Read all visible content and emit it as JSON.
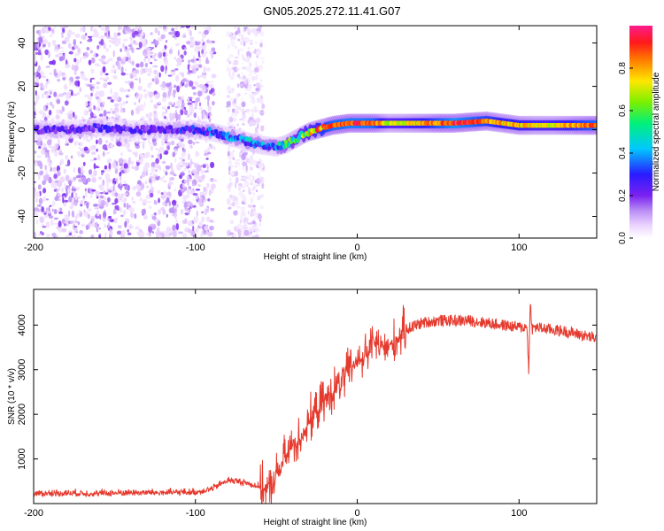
{
  "title": "GN05.2025.272.11.41.G07",
  "colors": {
    "snr_line": "#e53a2e",
    "colormap": [
      "#ffffff",
      "#ebd3ff",
      "#b98cf5",
      "#7a22f0",
      "#2a1bff",
      "#00c8ff",
      "#00f07a",
      "#7cf000",
      "#ffe600",
      "#ff7a00",
      "#ff1a1a",
      "#ff1a8c"
    ]
  },
  "chart_data": [
    {
      "type": "heatmap",
      "title": "",
      "xlabel": "Height of straight line (km)",
      "ylabel": "Frequency (Hz)",
      "xlim": [
        -200,
        148
      ],
      "ylim": [
        -50,
        48
      ],
      "xticks": [
        -200,
        -100,
        0,
        100
      ],
      "yticks": [
        -40,
        -20,
        0,
        20,
        40
      ],
      "colorbar": {
        "label": "Normalized spectral amplitude",
        "range": [
          0,
          1
        ],
        "ticks": [
          "0.0",
          "0.2",
          "0.4",
          "0.6",
          "0.8"
        ]
      },
      "ridge": {
        "x": [
          -200,
          -180,
          -160,
          -140,
          -120,
          -100,
          -90,
          -80,
          -70,
          -60,
          -50,
          -45,
          -40,
          -35,
          -30,
          -25,
          -20,
          -15,
          -10,
          -5,
          0,
          10,
          20,
          40,
          60,
          80,
          90,
          100,
          110,
          120,
          148
        ],
        "freq": [
          0,
          0,
          1,
          0,
          0,
          0,
          -1,
          -3,
          -5,
          -7,
          -8,
          -7,
          -5,
          -3,
          -1,
          0,
          1,
          2,
          2.5,
          3,
          3,
          3,
          3,
          3,
          3,
          4,
          3,
          2,
          2,
          2,
          2
        ],
        "amplitude": [
          0.3,
          0.3,
          0.32,
          0.3,
          0.3,
          0.35,
          0.38,
          0.4,
          0.42,
          0.42,
          0.45,
          0.5,
          0.6,
          0.65,
          0.75,
          0.8,
          0.85,
          0.9,
          0.9,
          0.92,
          0.92,
          0.9,
          0.7,
          0.8,
          0.95,
          0.85,
          0.8,
          0.8,
          0.75,
          0.75,
          0.9
        ]
      }
    },
    {
      "type": "line",
      "title": "",
      "xlabel": "Height of straight line (km)",
      "ylabel": "SNR (10 * v/v)",
      "xlim": [
        -200,
        148
      ],
      "ylim": [
        0,
        4800
      ],
      "xticks": [
        -200,
        -100,
        0,
        100
      ],
      "yticks": [
        1000,
        2000,
        3000,
        4000
      ],
      "series": [
        {
          "name": "SNR",
          "x": [
            -200,
            -180,
            -160,
            -140,
            -120,
            -100,
            -90,
            -80,
            -70,
            -60,
            -55,
            -50,
            -45,
            -40,
            -35,
            -30,
            -25,
            -20,
            -15,
            -10,
            -5,
            0,
            5,
            10,
            15,
            20,
            25,
            30,
            40,
            50,
            60,
            70,
            80,
            90,
            100,
            105,
            106,
            107,
            108,
            110,
            120,
            130,
            148
          ],
          "y": [
            200,
            210,
            200,
            220,
            220,
            230,
            300,
            500,
            450,
            350,
            300,
            600,
            1000,
            1300,
            1500,
            1800,
            2100,
            2300,
            2500,
            2700,
            3000,
            3200,
            3300,
            3600,
            3500,
            3500,
            3700,
            3900,
            4050,
            4100,
            4100,
            4100,
            4050,
            4000,
            3950,
            3950,
            2900,
            4600,
            3900,
            3950,
            3900,
            3850,
            3700
          ]
        }
      ]
    }
  ]
}
